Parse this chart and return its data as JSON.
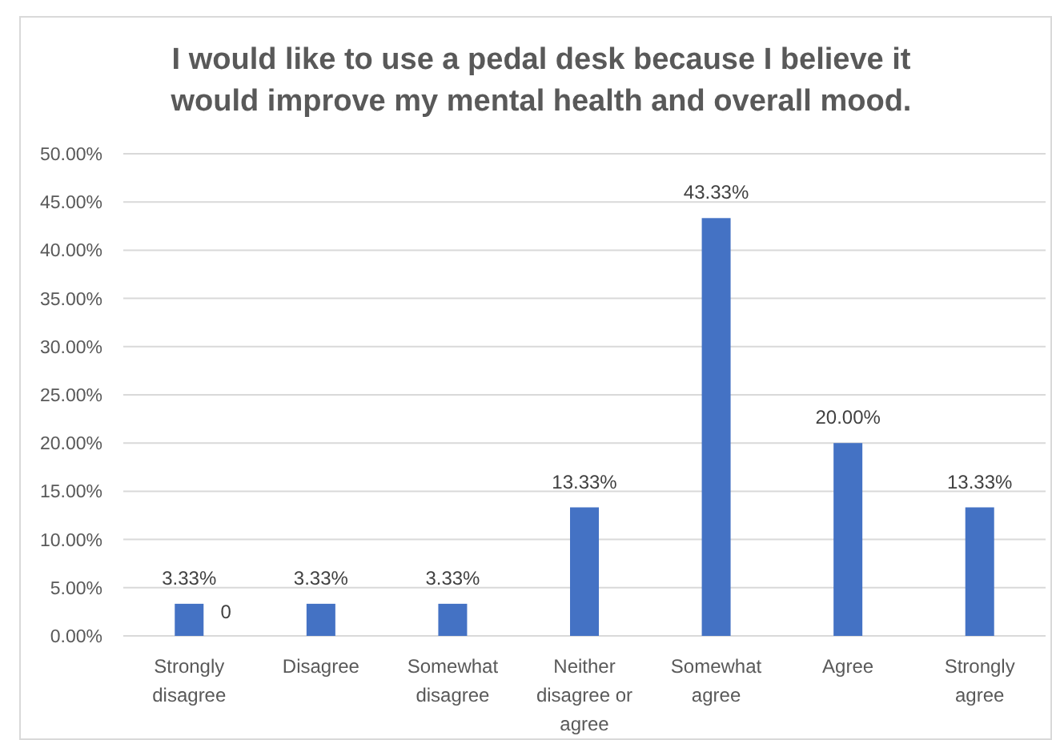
{
  "chart_data": {
    "type": "bar",
    "title": "I would like to use a pedal desk because I believe it would improve my mental health and overall mood.",
    "categories": [
      "Strongly disagree",
      "Disagree",
      "Somewhat disagree",
      "Neither disagree or agree",
      "Somewhat agree",
      "Agree",
      "Strongly agree"
    ],
    "values": [
      3.33,
      3.33,
      3.33,
      13.33,
      43.33,
      20.0,
      13.33
    ],
    "color": "#4472c4",
    "value_labels": [
      "3.33%",
      "3.33%",
      "3.33%",
      "13.33%",
      "43.33%",
      "20.00%",
      "13.33%"
    ],
    "ylim": [
      0,
      50
    ],
    "yticks": [
      {
        "value": 0,
        "label": "0.00%"
      },
      {
        "value": 5,
        "label": "5.00%"
      },
      {
        "value": 10,
        "label": "10.00%"
      },
      {
        "value": 15,
        "label": "15.00%"
      },
      {
        "value": 20,
        "label": "20.00%"
      },
      {
        "value": 25,
        "label": "25.00%"
      },
      {
        "value": 30,
        "label": "30.00%"
      },
      {
        "value": 35,
        "label": "35.00%"
      },
      {
        "value": 40,
        "label": "40.00%"
      },
      {
        "value": 45,
        "label": "45.00%"
      },
      {
        "value": 50,
        "label": "50.00%"
      }
    ],
    "grid": "y",
    "annotations": [
      {
        "text": "0",
        "x": "Strongly disagree",
        "y": 0
      }
    ]
  }
}
